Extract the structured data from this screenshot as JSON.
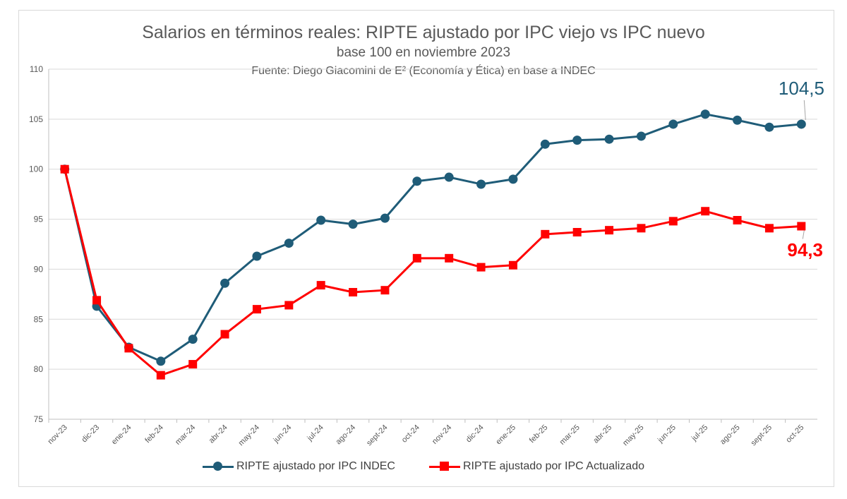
{
  "header": {
    "title": "Salarios en términos reales: RIPTE ajustado por IPC viejo vs IPC nuevo",
    "subtitle": "base 100 en noviembre 2023",
    "source": "Fuente: Diego Giacomini de E² (Economía y Ética) en base a INDEC"
  },
  "chart_data": {
    "type": "line",
    "title": "Salarios en términos reales: RIPTE ajustado por IPC viejo vs IPC nuevo",
    "subtitle": "base 100 en noviembre 2023",
    "ylim": [
      75,
      110
    ],
    "yticks": [
      75,
      80,
      85,
      90,
      95,
      100,
      105,
      110
    ],
    "grid": true,
    "legend_position": "bottom",
    "categories": [
      "nov-23",
      "dic-23",
      "ene-24",
      "feb-24",
      "mar-24",
      "abr-24",
      "may-24",
      "jun-24",
      "jul-24",
      "ago-24",
      "sept-24",
      "oct-24",
      "nov-24",
      "dic-24",
      "ene-25",
      "feb-25",
      "mar-25",
      "abr-25",
      "may-25",
      "jun-25",
      "jul-25",
      "ago-25",
      "sept-25",
      "oct-25"
    ],
    "series": [
      {
        "name": "RIPTE ajustado por IPC INDEC",
        "color": "#1f5c78",
        "marker": "circle",
        "values": [
          100,
          86.3,
          82.2,
          80.8,
          83.0,
          88.6,
          91.3,
          92.6,
          94.9,
          94.5,
          95.1,
          98.8,
          99.2,
          98.5,
          99.0,
          102.5,
          102.9,
          103.0,
          103.3,
          104.5,
          105.5,
          104.9,
          104.2,
          104.5
        ],
        "end_label": "104,5"
      },
      {
        "name": "RIPTE ajustado por IPC Actualizado",
        "color": "#ff0000",
        "marker": "square",
        "values": [
          100,
          86.9,
          82.1,
          79.4,
          80.5,
          83.5,
          86.0,
          86.4,
          88.4,
          87.7,
          87.9,
          91.1,
          91.1,
          90.2,
          90.4,
          93.5,
          93.7,
          93.9,
          94.1,
          94.8,
          95.8,
          94.9,
          94.1,
          94.3
        ],
        "end_label": "94,3"
      }
    ]
  }
}
